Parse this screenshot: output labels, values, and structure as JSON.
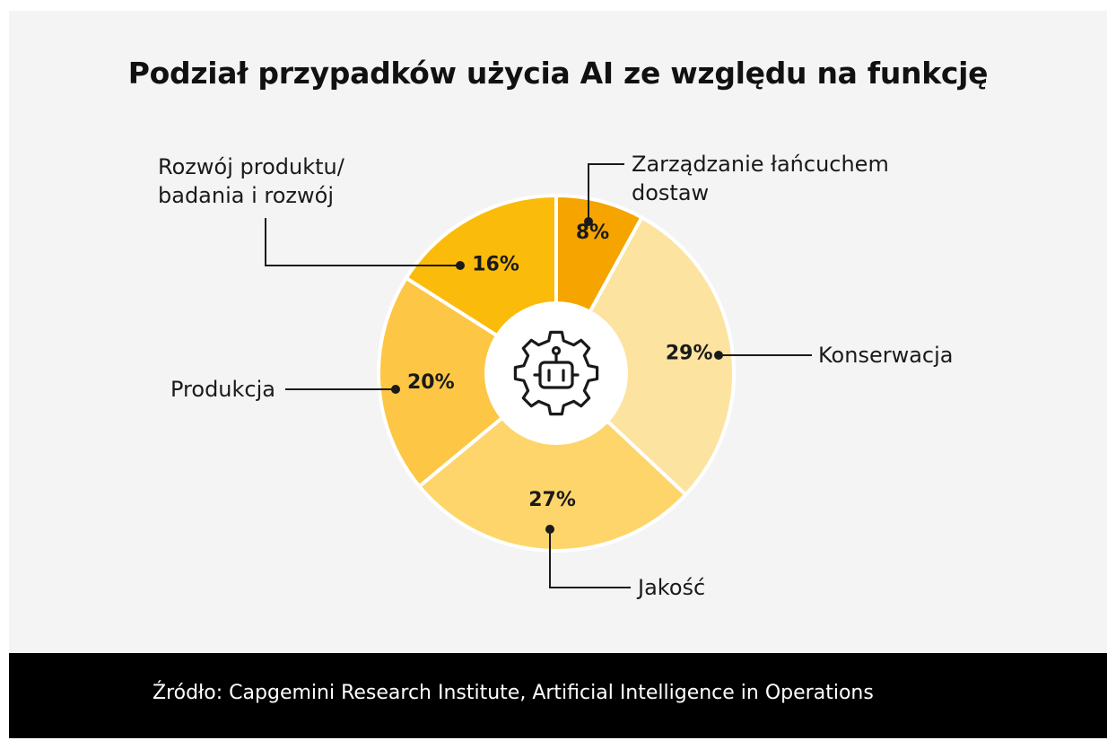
{
  "chart_data": {
    "type": "pie",
    "title": "Podział przypadków użycia AI ze względu na funkcję",
    "categories": [
      "Zarządzanie łańcuchem dostaw",
      "Konserwacja",
      "Jakość",
      "Produkcja",
      "Rozwój produktu/ badania i rozwój"
    ],
    "values": [
      8,
      29,
      27,
      20,
      16
    ],
    "value_labels": [
      "8%",
      "29%",
      "27%",
      "20%",
      "16%"
    ],
    "label_lines": [
      [
        "Zarządzanie łańcuchem",
        "dostaw"
      ],
      [
        "Konserwacja"
      ],
      [
        "Jakość"
      ],
      [
        "Produkcja"
      ],
      [
        "Rozwój produktu/",
        "badania i rozwój"
      ]
    ],
    "colors": [
      "#f5a400",
      "#fde3a0",
      "#fdd56b",
      "#fdc644",
      "#fbbb0a"
    ],
    "center_icon": "gear-robot-icon",
    "style": "donut"
  },
  "footer": {
    "source": "Źródło: Capgemini Research Institute, Artificial Intelligence in Operations"
  }
}
